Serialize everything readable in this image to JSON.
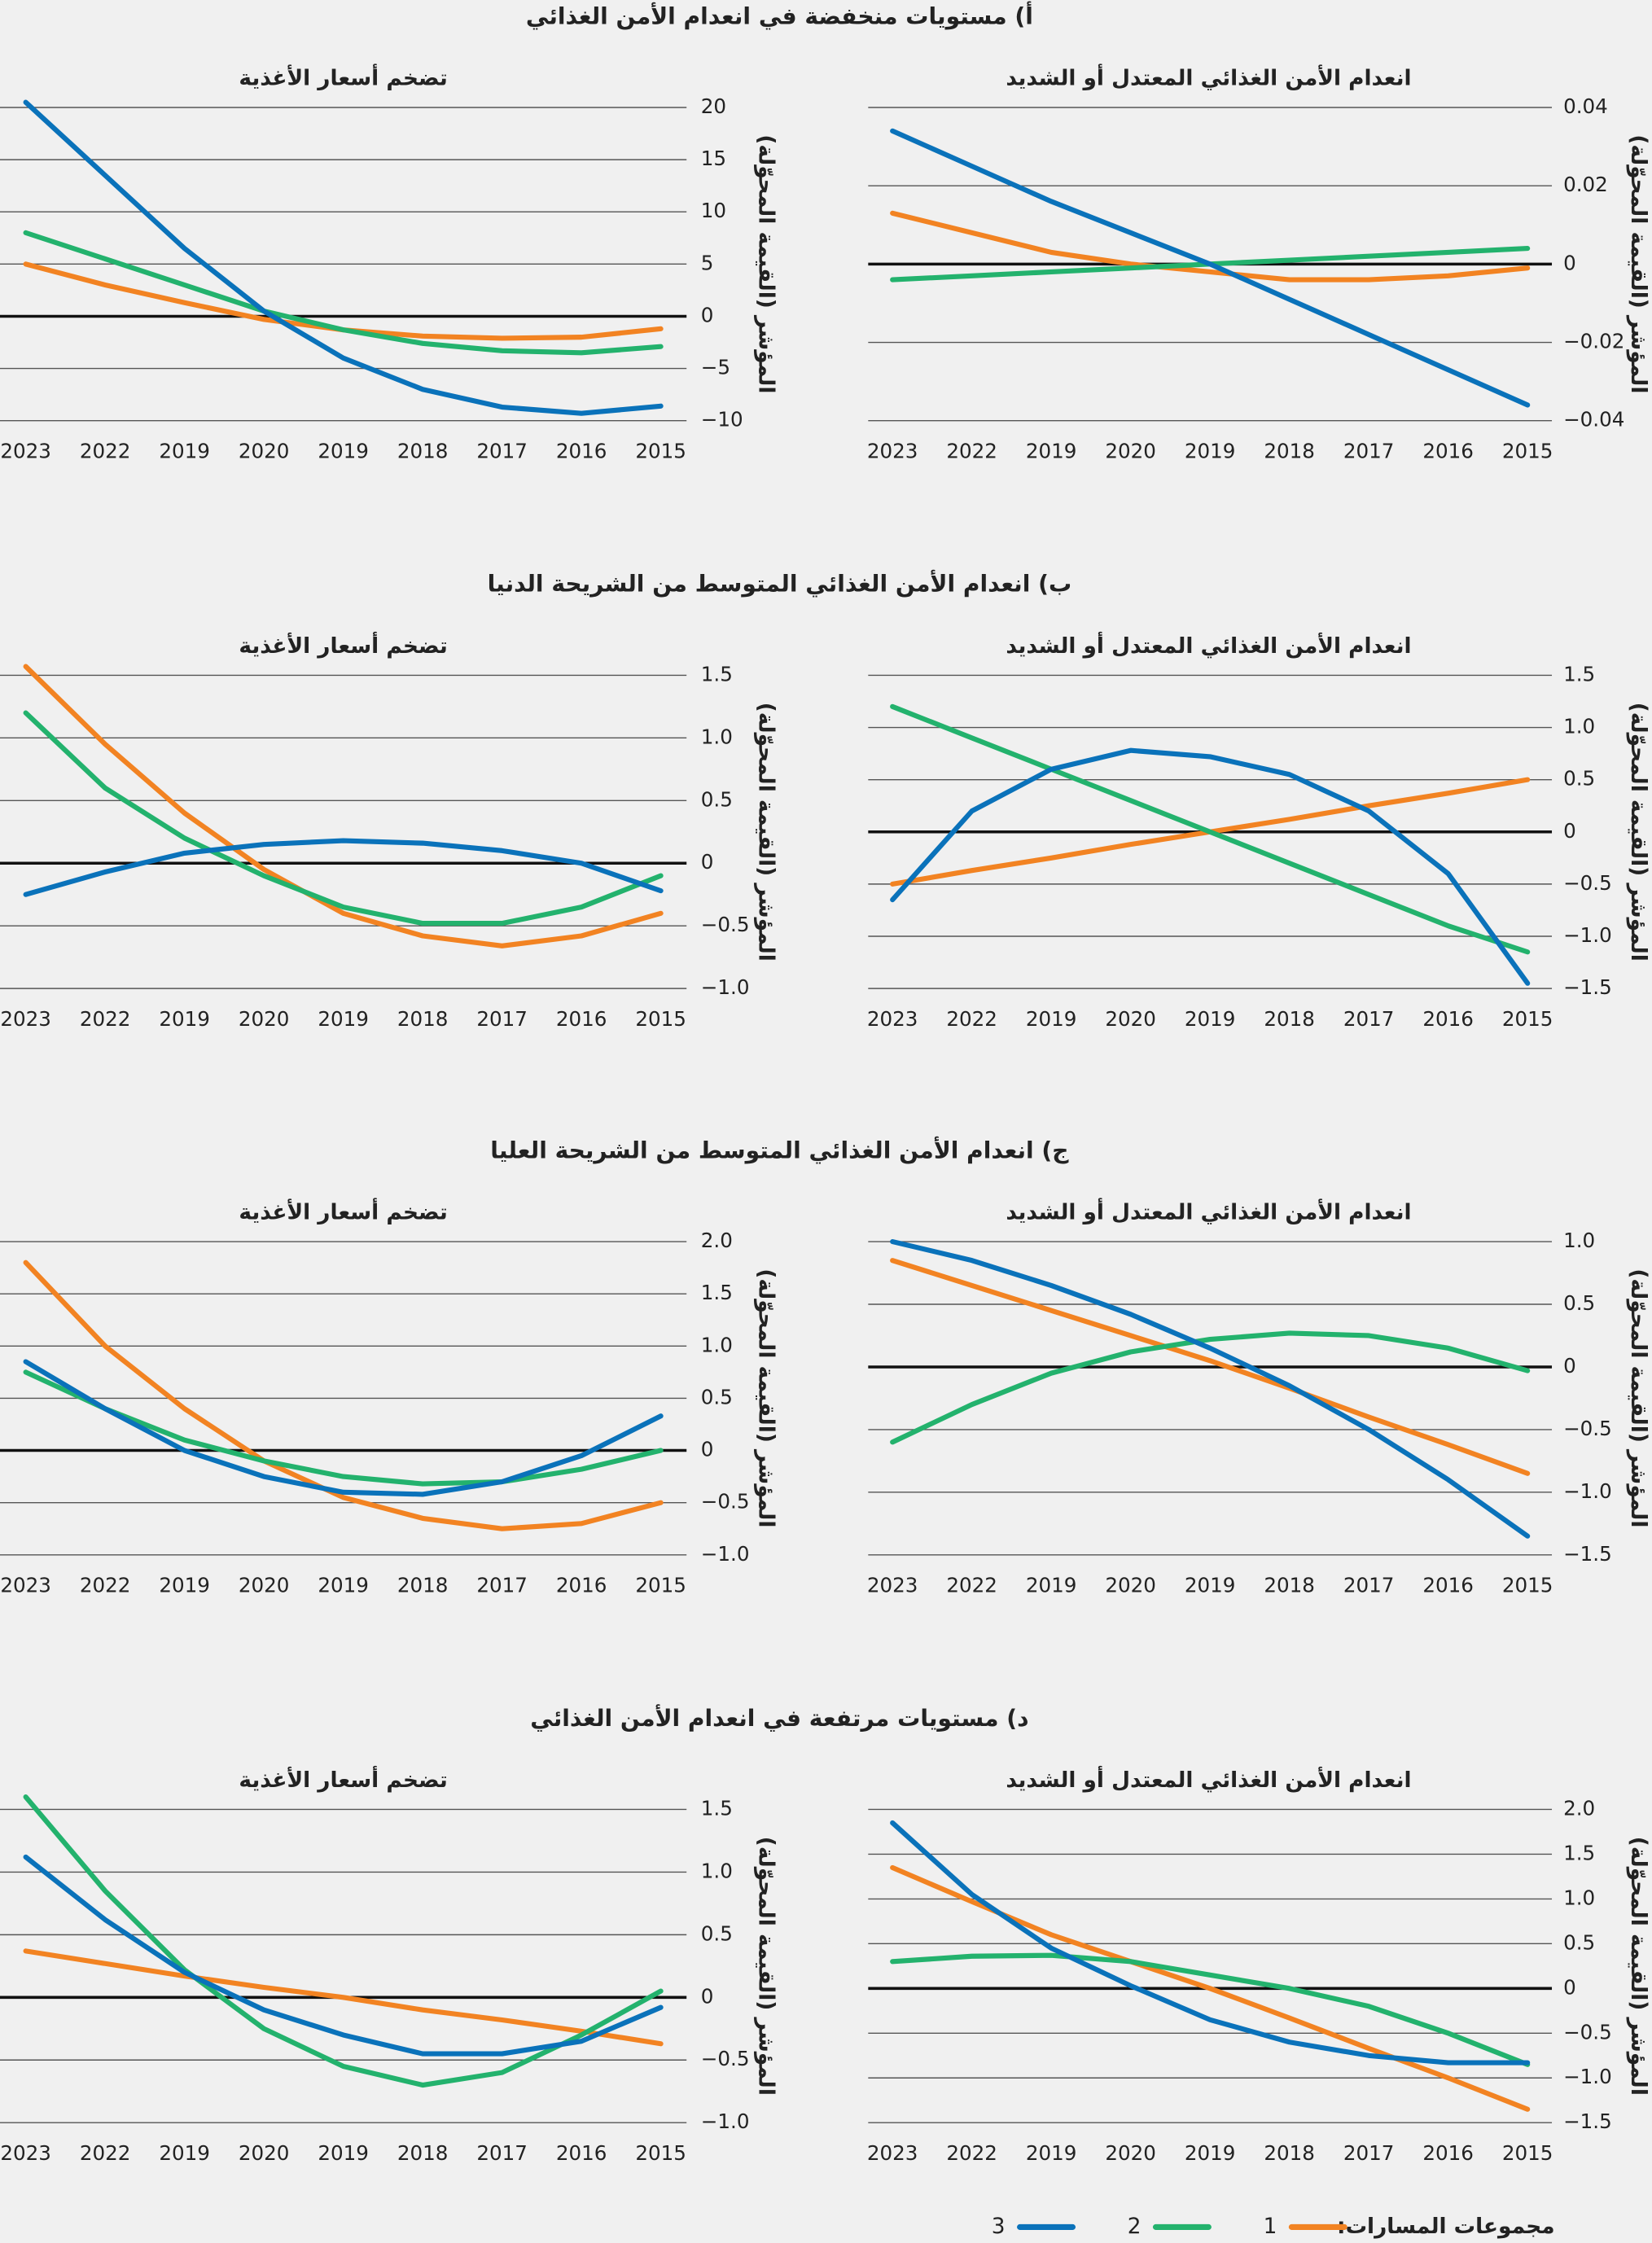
{
  "sections": [
    "أ) مستويات منخفضة في انعدام الأمن الغذائي",
    "ب) انعدام الأمن الغذائي المتوسط من الشريحة الدنيا",
    "ج) انعدام الأمن الغذائي المتوسط من الشريحة العليا",
    "د) مستويات مرتفعة في انعدام الأمن الغذائي"
  ],
  "legend_title": "مجموعات المسارات:",
  "chart_data": [
    {
      "type": "line",
      "title": "تضخم أسعار الأغذية",
      "y_label": "المؤشر (القيمة المحوّلة)",
      "categories": [
        "2023",
        "2022",
        "2019",
        "2020",
        "2019",
        "2018",
        "2017",
        "2016",
        "2015"
      ],
      "ylim": [
        -10,
        20
      ],
      "yticks": [
        {
          "value": -10,
          "label": "−10"
        },
        {
          "value": -5,
          "label": "−5"
        },
        0,
        5,
        10,
        15,
        20
      ],
      "series": [
        {
          "name": "1",
          "color": "#f28322",
          "values": [
            5,
            3,
            1.3,
            -0.3,
            -1.3,
            -1.9,
            -2.1,
            -2,
            -1.2
          ]
        },
        {
          "name": "2",
          "color": "#23b26d",
          "values": [
            8,
            5.5,
            3,
            0.5,
            -1.3,
            -2.6,
            -3.3,
            -3.5,
            -2.9
          ]
        },
        {
          "name": "3",
          "color": "#0a72ba",
          "values": [
            20.5,
            13.5,
            6.5,
            0.5,
            -4,
            -7,
            -8.7,
            -9.3,
            -8.6
          ]
        }
      ]
    },
    {
      "type": "line",
      "title": "انعدام الأمن الغذائي المعتدل أو الشديد",
      "y_label": "المؤشر (القيمة المحوّلة)",
      "categories": [
        "2023",
        "2022",
        "2019",
        "2020",
        "2019",
        "2018",
        "2017",
        "2016",
        "2015"
      ],
      "ylim": [
        -0.04,
        0.04
      ],
      "yticks": [
        {
          "value": -0.04,
          "label": "−0.04"
        },
        {
          "value": -0.02,
          "label": "−0.02"
        },
        0,
        0.02,
        0.04
      ],
      "series": [
        {
          "name": "1",
          "color": "#f28322",
          "values": [
            0.013,
            0.008,
            0.003,
            0,
            -0.002,
            -0.004,
            -0.004,
            -0.003,
            -0.001
          ]
        },
        {
          "name": "2",
          "color": "#23b26d",
          "values": [
            -0.004,
            -0.003,
            -0.002,
            -0.001,
            0,
            0.001,
            0.002,
            0.003,
            0.004
          ]
        },
        {
          "name": "3",
          "color": "#0a72ba",
          "values": [
            0.034,
            0.025,
            0.016,
            0.008,
            0,
            -0.009,
            -0.018,
            -0.027,
            -0.036
          ]
        }
      ]
    },
    {
      "type": "line",
      "title": "تضخم أسعار الأغذية",
      "y_label": "المؤشر (القيمة المحوّلة)",
      "categories": [
        "2023",
        "2022",
        "2019",
        "2020",
        "2019",
        "2018",
        "2017",
        "2016",
        "2015"
      ],
      "ylim": [
        -1,
        1.5
      ],
      "yticks": [
        {
          "value": -1,
          "label": "−1.0"
        },
        {
          "value": -0.5,
          "label": "−0.5"
        },
        0,
        0.5,
        {
          "value": 1,
          "label": "1.0"
        },
        1.5
      ],
      "series": [
        {
          "name": "1",
          "color": "#f28322",
          "values": [
            1.57,
            0.95,
            0.4,
            -0.05,
            -0.4,
            -0.58,
            -0.66,
            -0.58,
            -0.4
          ]
        },
        {
          "name": "2",
          "color": "#23b26d",
          "values": [
            1.2,
            0.6,
            0.2,
            -0.1,
            -0.35,
            -0.48,
            -0.48,
            -0.35,
            -0.1
          ]
        },
        {
          "name": "3",
          "color": "#0a72ba",
          "values": [
            -0.25,
            -0.07,
            0.08,
            0.15,
            0.18,
            0.16,
            0.1,
            0,
            -0.22
          ]
        }
      ]
    },
    {
      "type": "line",
      "title": "انعدام الأمن الغذائي المعتدل أو الشديد",
      "y_label": "المؤشر (القيمة المحوّلة)",
      "categories": [
        "2023",
        "2022",
        "2019",
        "2020",
        "2019",
        "2018",
        "2017",
        "2016",
        "2015"
      ],
      "ylim": [
        -1.5,
        1.5
      ],
      "yticks": [
        {
          "value": -1.5,
          "label": "−1.5"
        },
        {
          "value": -1,
          "label": "−1.0"
        },
        {
          "value": -0.5,
          "label": "−0.5"
        },
        0,
        0.5,
        {
          "value": 1,
          "label": "1.0"
        },
        1.5
      ],
      "series": [
        {
          "name": "1",
          "color": "#f28322",
          "values": [
            -0.5,
            -0.37,
            -0.25,
            -0.12,
            0,
            0.12,
            0.25,
            0.37,
            0.5
          ]
        },
        {
          "name": "2",
          "color": "#23b26d",
          "values": [
            1.2,
            0.9,
            0.6,
            0.3,
            0,
            -0.3,
            -0.6,
            -0.9,
            -1.15
          ]
        },
        {
          "name": "3",
          "color": "#0a72ba",
          "values": [
            -0.65,
            0.2,
            0.6,
            0.78,
            0.72,
            0.55,
            0.2,
            -0.4,
            -1.45
          ]
        }
      ]
    },
    {
      "type": "line",
      "title": "تضخم أسعار الأغذية",
      "y_label": "المؤشر (القيمة المحوّلة)",
      "categories": [
        "2023",
        "2022",
        "2019",
        "2020",
        "2019",
        "2018",
        "2017",
        "2016",
        "2015"
      ],
      "ylim": [
        -1,
        2
      ],
      "yticks": [
        {
          "value": -1,
          "label": "−1.0"
        },
        {
          "value": -0.5,
          "label": "−0.5"
        },
        0,
        0.5,
        {
          "value": 1,
          "label": "1.0"
        },
        1.5,
        {
          "value": 2,
          "label": "2.0"
        }
      ],
      "series": [
        {
          "name": "1",
          "color": "#f28322",
          "values": [
            1.8,
            1.0,
            0.4,
            -0.1,
            -0.45,
            -0.65,
            -0.75,
            -0.7,
            -0.5
          ]
        },
        {
          "name": "2",
          "color": "#23b26d",
          "values": [
            0.75,
            0.4,
            0.1,
            -0.1,
            -0.25,
            -0.32,
            -0.3,
            -0.18,
            0
          ]
        },
        {
          "name": "3",
          "color": "#0a72ba",
          "values": [
            0.85,
            0.4,
            0,
            -0.25,
            -0.4,
            -0.42,
            -0.3,
            -0.05,
            0.33
          ]
        }
      ]
    },
    {
      "type": "line",
      "title": "انعدام الأمن الغذائي المعتدل أو الشديد",
      "y_label": "المؤشر (القيمة المحوّلة)",
      "categories": [
        "2023",
        "2022",
        "2019",
        "2020",
        "2019",
        "2018",
        "2017",
        "2016",
        "2015"
      ],
      "ylim": [
        -1.5,
        1
      ],
      "yticks": [
        {
          "value": -1.5,
          "label": "−1.5"
        },
        {
          "value": -1,
          "label": "−1.0"
        },
        {
          "value": -0.5,
          "label": "−0.5"
        },
        0,
        0.5,
        {
          "value": 1,
          "label": "1.0"
        }
      ],
      "series": [
        {
          "name": "1",
          "color": "#f28322",
          "values": [
            0.85,
            0.65,
            0.45,
            0.25,
            0.05,
            -0.17,
            -0.4,
            -0.62,
            -0.85
          ]
        },
        {
          "name": "2",
          "color": "#23b26d",
          "values": [
            -0.6,
            -0.3,
            -0.05,
            0.12,
            0.22,
            0.27,
            0.25,
            0.15,
            -0.03
          ]
        },
        {
          "name": "3",
          "color": "#0a72ba",
          "values": [
            1.0,
            0.85,
            0.65,
            0.42,
            0.15,
            -0.15,
            -0.5,
            -0.9,
            -1.35
          ]
        }
      ]
    },
    {
      "type": "line",
      "title": "تضخم أسعار الأغذية",
      "y_label": "المؤشر (القيمة المحوّلة)",
      "categories": [
        "2023",
        "2022",
        "2019",
        "2020",
        "2019",
        "2018",
        "2017",
        "2016",
        "2015"
      ],
      "ylim": [
        -1,
        1.5
      ],
      "yticks": [
        {
          "value": -1,
          "label": "−1.0"
        },
        {
          "value": -0.5,
          "label": "−0.5"
        },
        0,
        0.5,
        {
          "value": 1,
          "label": "1.0"
        },
        1.5
      ],
      "series": [
        {
          "name": "1",
          "color": "#f28322",
          "values": [
            0.37,
            0.27,
            0.17,
            0.08,
            0,
            -0.1,
            -0.18,
            -0.27,
            -0.37
          ]
        },
        {
          "name": "2",
          "color": "#23b26d",
          "values": [
            1.6,
            0.85,
            0.22,
            -0.25,
            -0.55,
            -0.7,
            -0.6,
            -0.3,
            0.05
          ]
        },
        {
          "name": "3",
          "color": "#0a72ba",
          "values": [
            1.12,
            0.62,
            0.2,
            -0.1,
            -0.3,
            -0.45,
            -0.45,
            -0.35,
            -0.08
          ]
        }
      ]
    },
    {
      "type": "line",
      "title": "انعدام الأمن الغذائي المعتدل أو الشديد",
      "y_label": "المؤشر (القيمة المحوّلة)",
      "categories": [
        "2023",
        "2022",
        "2019",
        "2020",
        "2019",
        "2018",
        "2017",
        "2016",
        "2015"
      ],
      "ylim": [
        -1.5,
        2
      ],
      "yticks": [
        {
          "value": -1.5,
          "label": "−1.5"
        },
        {
          "value": -1,
          "label": "−1.0"
        },
        {
          "value": -0.5,
          "label": "−0.5"
        },
        0,
        0.5,
        {
          "value": 1,
          "label": "1.0"
        },
        1.5,
        {
          "value": 2,
          "label": "2.0"
        }
      ],
      "series": [
        {
          "name": "1",
          "color": "#f28322",
          "values": [
            1.35,
            0.97,
            0.6,
            0.3,
            0,
            -0.33,
            -0.67,
            -1.0,
            -1.35
          ]
        },
        {
          "name": "2",
          "color": "#23b26d",
          "values": [
            0.3,
            0.36,
            0.37,
            0.3,
            0.15,
            0,
            -0.2,
            -0.5,
            -0.85
          ]
        },
        {
          "name": "3",
          "color": "#0a72ba",
          "values": [
            1.85,
            1.05,
            0.45,
            0.03,
            -0.35,
            -0.6,
            -0.75,
            -0.83,
            -0.83
          ]
        }
      ]
    }
  ]
}
